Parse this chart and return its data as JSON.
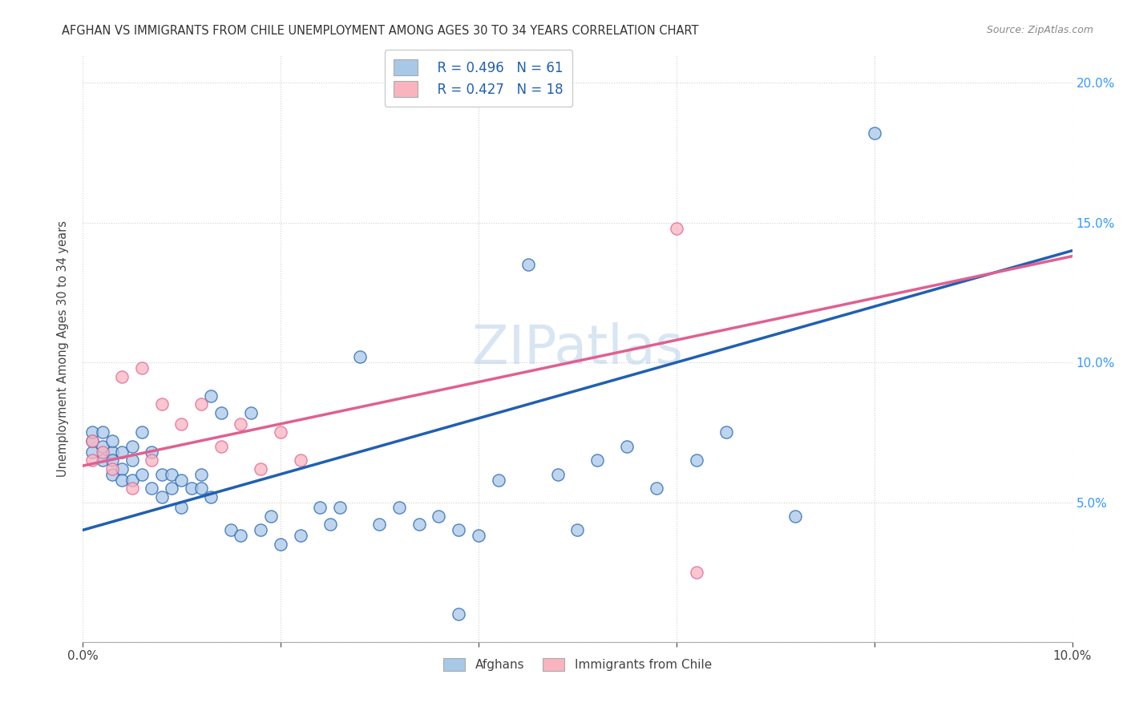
{
  "title": "AFGHAN VS IMMIGRANTS FROM CHILE UNEMPLOYMENT AMONG AGES 30 TO 34 YEARS CORRELATION CHART",
  "source": "Source: ZipAtlas.com",
  "ylabel": "Unemployment Among Ages 30 to 34 years",
  "xlim": [
    0.0,
    0.1
  ],
  "ylim": [
    0.0,
    0.21
  ],
  "afghan_color": "#a8c8e8",
  "chile_color": "#f9b4c0",
  "afghan_line_color": "#2060b0",
  "chile_line_color": "#e06090",
  "background_color": "#ffffff",
  "grid_color": "#d0d0d0",
  "watermark": "ZIPatlas",
  "legend_R_afghan": "R = 0.496",
  "legend_N_afghan": "N = 61",
  "legend_R_chile": "R = 0.427",
  "legend_N_chile": "N = 18",
  "afghan_x": [
    0.001,
    0.001,
    0.001,
    0.002,
    0.002,
    0.002,
    0.003,
    0.003,
    0.003,
    0.003,
    0.004,
    0.004,
    0.004,
    0.005,
    0.005,
    0.005,
    0.006,
    0.006,
    0.007,
    0.007,
    0.008,
    0.008,
    0.009,
    0.009,
    0.01,
    0.01,
    0.011,
    0.012,
    0.012,
    0.013,
    0.013,
    0.014,
    0.015,
    0.016,
    0.017,
    0.018,
    0.019,
    0.02,
    0.022,
    0.024,
    0.025,
    0.026,
    0.028,
    0.03,
    0.032,
    0.034,
    0.036,
    0.038,
    0.04,
    0.042,
    0.045,
    0.048,
    0.05,
    0.052,
    0.055,
    0.058,
    0.062,
    0.065,
    0.072,
    0.08,
    0.038
  ],
  "afghan_y": [
    0.068,
    0.072,
    0.075,
    0.07,
    0.075,
    0.065,
    0.068,
    0.072,
    0.06,
    0.065,
    0.062,
    0.068,
    0.058,
    0.07,
    0.065,
    0.058,
    0.075,
    0.06,
    0.068,
    0.055,
    0.06,
    0.052,
    0.055,
    0.06,
    0.058,
    0.048,
    0.055,
    0.055,
    0.06,
    0.088,
    0.052,
    0.082,
    0.04,
    0.038,
    0.082,
    0.04,
    0.045,
    0.035,
    0.038,
    0.048,
    0.042,
    0.048,
    0.102,
    0.042,
    0.048,
    0.042,
    0.045,
    0.04,
    0.038,
    0.058,
    0.135,
    0.06,
    0.04,
    0.065,
    0.07,
    0.055,
    0.065,
    0.075,
    0.045,
    0.182,
    0.01
  ],
  "chile_x": [
    0.001,
    0.001,
    0.002,
    0.003,
    0.004,
    0.005,
    0.006,
    0.007,
    0.008,
    0.01,
    0.012,
    0.014,
    0.016,
    0.018,
    0.02,
    0.022,
    0.06,
    0.062
  ],
  "chile_y": [
    0.072,
    0.065,
    0.068,
    0.062,
    0.095,
    0.055,
    0.098,
    0.065,
    0.085,
    0.078,
    0.085,
    0.07,
    0.078,
    0.062,
    0.075,
    0.065,
    0.148,
    0.025
  ],
  "afghan_line_x0": 0.0,
  "afghan_line_y0": 0.04,
  "afghan_line_x1": 0.1,
  "afghan_line_y1": 0.14,
  "chile_line_x0": 0.0,
  "chile_line_y0": 0.063,
  "chile_line_x1": 0.1,
  "chile_line_y1": 0.138
}
